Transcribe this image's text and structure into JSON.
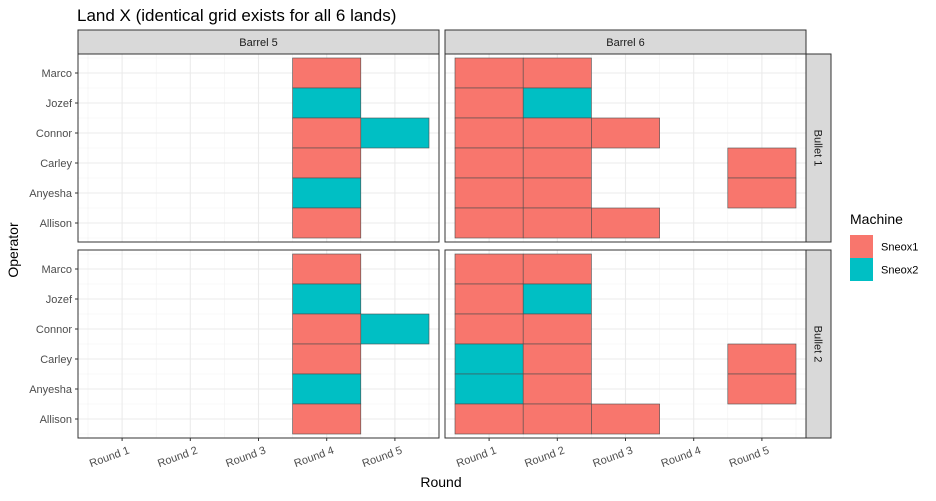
{
  "chart_data": {
    "type": "heatmap",
    "title": "Land X (identical grid exists for all 6 lands)",
    "xlabel": "Round",
    "ylabel": "Operator",
    "x_categories": [
      "Round 1",
      "Round 2",
      "Round 3",
      "Round 4",
      "Round 5"
    ],
    "y_categories": [
      "Marco",
      "Jozef",
      "Connor",
      "Carley",
      "Anyesha",
      "Allison"
    ],
    "facet_columns": [
      "Barrel 5",
      "Barrel 6"
    ],
    "facet_rows": [
      "Bullet 1",
      "Bullet 2"
    ],
    "legend": {
      "title": "Machine",
      "placement": "right",
      "items": [
        {
          "label": "Sneox1",
          "color": "#F8766D"
        },
        {
          "label": "Sneox2",
          "color": "#00BFC4"
        }
      ]
    },
    "grid": true,
    "panels": [
      {
        "column": "Barrel 5",
        "row": "Bullet 1",
        "tiles": [
          {
            "x": "Round 4",
            "y": "Marco",
            "machine": "Sneox1"
          },
          {
            "x": "Round 4",
            "y": "Jozef",
            "machine": "Sneox2"
          },
          {
            "x": "Round 4",
            "y": "Connor",
            "machine": "Sneox1"
          },
          {
            "x": "Round 5",
            "y": "Connor",
            "machine": "Sneox2"
          },
          {
            "x": "Round 4",
            "y": "Carley",
            "machine": "Sneox1"
          },
          {
            "x": "Round 4",
            "y": "Anyesha",
            "machine": "Sneox2"
          },
          {
            "x": "Round 4",
            "y": "Allison",
            "machine": "Sneox1"
          }
        ]
      },
      {
        "column": "Barrel 6",
        "row": "Bullet 1",
        "tiles": [
          {
            "x": "Round 1",
            "y": "Marco",
            "machine": "Sneox1"
          },
          {
            "x": "Round 2",
            "y": "Marco",
            "machine": "Sneox1"
          },
          {
            "x": "Round 1",
            "y": "Jozef",
            "machine": "Sneox1"
          },
          {
            "x": "Round 2",
            "y": "Jozef",
            "machine": "Sneox2"
          },
          {
            "x": "Round 1",
            "y": "Connor",
            "machine": "Sneox1"
          },
          {
            "x": "Round 2",
            "y": "Connor",
            "machine": "Sneox1"
          },
          {
            "x": "Round 3",
            "y": "Connor",
            "machine": "Sneox1"
          },
          {
            "x": "Round 1",
            "y": "Carley",
            "machine": "Sneox1"
          },
          {
            "x": "Round 2",
            "y": "Carley",
            "machine": "Sneox1"
          },
          {
            "x": "Round 5",
            "y": "Carley",
            "machine": "Sneox1"
          },
          {
            "x": "Round 1",
            "y": "Anyesha",
            "machine": "Sneox1"
          },
          {
            "x": "Round 2",
            "y": "Anyesha",
            "machine": "Sneox1"
          },
          {
            "x": "Round 5",
            "y": "Anyesha",
            "machine": "Sneox1"
          },
          {
            "x": "Round 1",
            "y": "Allison",
            "machine": "Sneox1"
          },
          {
            "x": "Round 2",
            "y": "Allison",
            "machine": "Sneox1"
          },
          {
            "x": "Round 3",
            "y": "Allison",
            "machine": "Sneox1"
          }
        ]
      },
      {
        "column": "Barrel 5",
        "row": "Bullet 2",
        "tiles": [
          {
            "x": "Round 4",
            "y": "Marco",
            "machine": "Sneox1"
          },
          {
            "x": "Round 4",
            "y": "Jozef",
            "machine": "Sneox2"
          },
          {
            "x": "Round 4",
            "y": "Connor",
            "machine": "Sneox1"
          },
          {
            "x": "Round 5",
            "y": "Connor",
            "machine": "Sneox2"
          },
          {
            "x": "Round 4",
            "y": "Carley",
            "machine": "Sneox1"
          },
          {
            "x": "Round 4",
            "y": "Anyesha",
            "machine": "Sneox2"
          },
          {
            "x": "Round 4",
            "y": "Allison",
            "machine": "Sneox1"
          }
        ]
      },
      {
        "column": "Barrel 6",
        "row": "Bullet 2",
        "tiles": [
          {
            "x": "Round 1",
            "y": "Marco",
            "machine": "Sneox1"
          },
          {
            "x": "Round 2",
            "y": "Marco",
            "machine": "Sneox1"
          },
          {
            "x": "Round 1",
            "y": "Jozef",
            "machine": "Sneox1"
          },
          {
            "x": "Round 2",
            "y": "Jozef",
            "machine": "Sneox2"
          },
          {
            "x": "Round 1",
            "y": "Connor",
            "machine": "Sneox1"
          },
          {
            "x": "Round 2",
            "y": "Connor",
            "machine": "Sneox1"
          },
          {
            "x": "Round 1",
            "y": "Carley",
            "machine": "Sneox2"
          },
          {
            "x": "Round 2",
            "y": "Carley",
            "machine": "Sneox1"
          },
          {
            "x": "Round 5",
            "y": "Carley",
            "machine": "Sneox1"
          },
          {
            "x": "Round 1",
            "y": "Anyesha",
            "machine": "Sneox2"
          },
          {
            "x": "Round 2",
            "y": "Anyesha",
            "machine": "Sneox1"
          },
          {
            "x": "Round 5",
            "y": "Anyesha",
            "machine": "Sneox1"
          },
          {
            "x": "Round 1",
            "y": "Allison",
            "machine": "Sneox1"
          },
          {
            "x": "Round 2",
            "y": "Allison",
            "machine": "Sneox1"
          },
          {
            "x": "Round 3",
            "y": "Allison",
            "machine": "Sneox1"
          }
        ]
      }
    ]
  }
}
